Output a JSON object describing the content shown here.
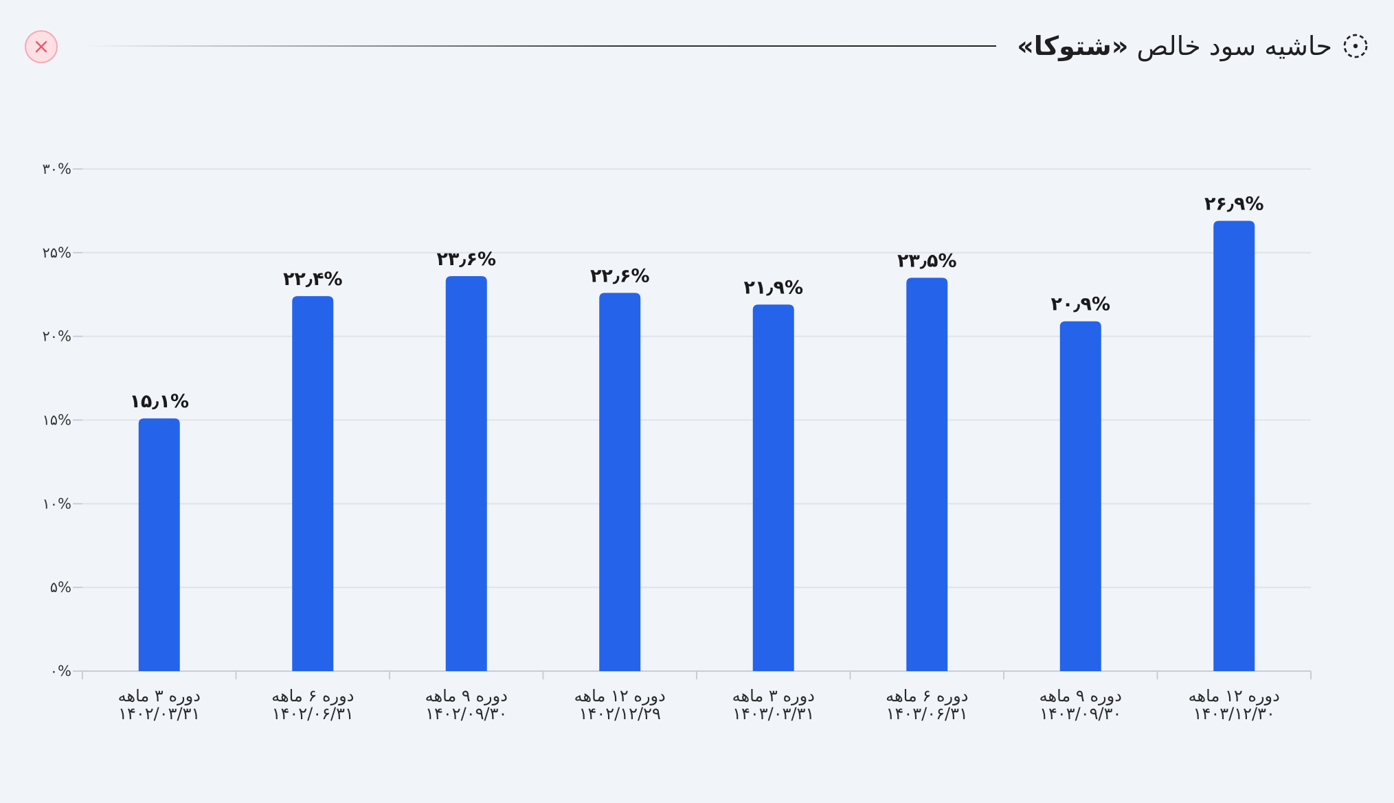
{
  "header": {
    "title_prefix": "حاشیه سود خالص",
    "title_name": "«شتوکا»",
    "title_icon": "dashed-circle-dot-icon",
    "close_icon": "close-icon"
  },
  "colors": {
    "bar": "#2563eb",
    "grid": "#dfe4ea",
    "close_bg": "#fde0e4",
    "close_x": "#e8596b"
  },
  "chart_data": {
    "type": "bar",
    "title": "حاشیه سود خالص «شتوکا»",
    "xlabel": "",
    "ylabel": "",
    "ylim": [
      0,
      30
    ],
    "grid": true,
    "y_ticks": [
      {
        "value": 0,
        "label": "۰%"
      },
      {
        "value": 5,
        "label": "۵%"
      },
      {
        "value": 10,
        "label": "۱۰%"
      },
      {
        "value": 15,
        "label": "۱۵%"
      },
      {
        "value": 20,
        "label": "۲۰%"
      },
      {
        "value": 25,
        "label": "۲۵%"
      },
      {
        "value": 30,
        "label": "۳۰%"
      }
    ],
    "categories": [
      {
        "period": "دوره ۳ ماهه",
        "date": "۱۴۰۲/۰۳/۳۱"
      },
      {
        "period": "دوره ۶ ماهه",
        "date": "۱۴۰۲/۰۶/۳۱"
      },
      {
        "period": "دوره ۹ ماهه",
        "date": "۱۴۰۲/۰۹/۳۰"
      },
      {
        "period": "دوره ۱۲ ماهه",
        "date": "۱۴۰۲/۱۲/۲۹"
      },
      {
        "period": "دوره ۳ ماهه",
        "date": "۱۴۰۳/۰۳/۳۱"
      },
      {
        "period": "دوره ۶ ماهه",
        "date": "۱۴۰۳/۰۶/۳۱"
      },
      {
        "period": "دوره ۹ ماهه",
        "date": "۱۴۰۳/۰۹/۳۰"
      },
      {
        "period": "دوره ۱۲ ماهه",
        "date": "۱۴۰۳/۱۲/۳۰"
      }
    ],
    "values": [
      15.1,
      22.4,
      23.6,
      22.6,
      21.9,
      23.5,
      20.9,
      26.9
    ],
    "value_labels": [
      "۱۵٫۱%",
      "۲۲٫۴%",
      "۲۳٫۶%",
      "۲۲٫۶%",
      "۲۱٫۹%",
      "۲۳٫۵%",
      "۲۰٫۹%",
      "۲۶٫۹%"
    ]
  }
}
